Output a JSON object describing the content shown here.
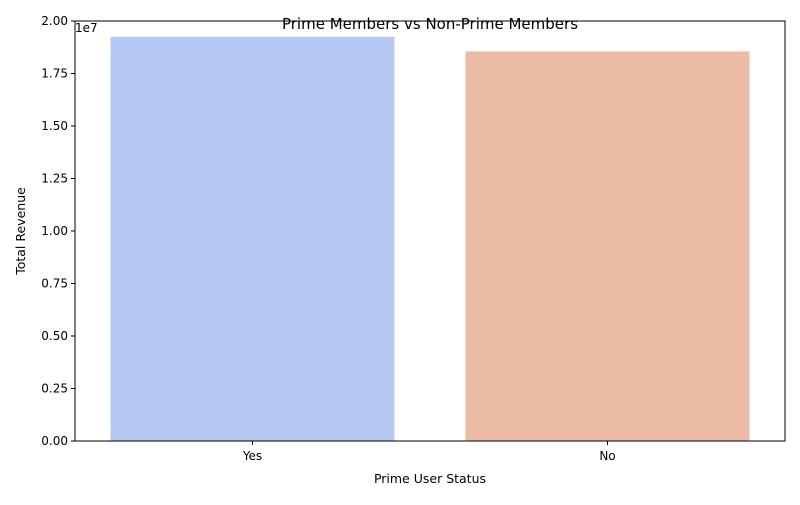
{
  "chart_data": {
    "type": "bar",
    "title": "Prime Members vs Non-Prime Members",
    "xlabel": "Prime User Status",
    "ylabel": "Total Revenue",
    "categories": [
      "Yes",
      "No"
    ],
    "values": [
      19250000,
      18550000
    ],
    "colors": [
      "#b5c9f2",
      "#ebbba6"
    ],
    "ylim": [
      0,
      20000000
    ],
    "yticks": [
      0,
      2500000,
      5000000,
      7500000,
      10000000,
      12500000,
      15000000,
      17500000,
      20000000
    ],
    "ytick_labels": [
      "0.00",
      "0.25",
      "0.50",
      "0.75",
      "1.00",
      "1.25",
      "1.50",
      "1.75",
      "2.00"
    ],
    "y_offset_label": "1e7",
    "grid": false,
    "legend": "none"
  }
}
